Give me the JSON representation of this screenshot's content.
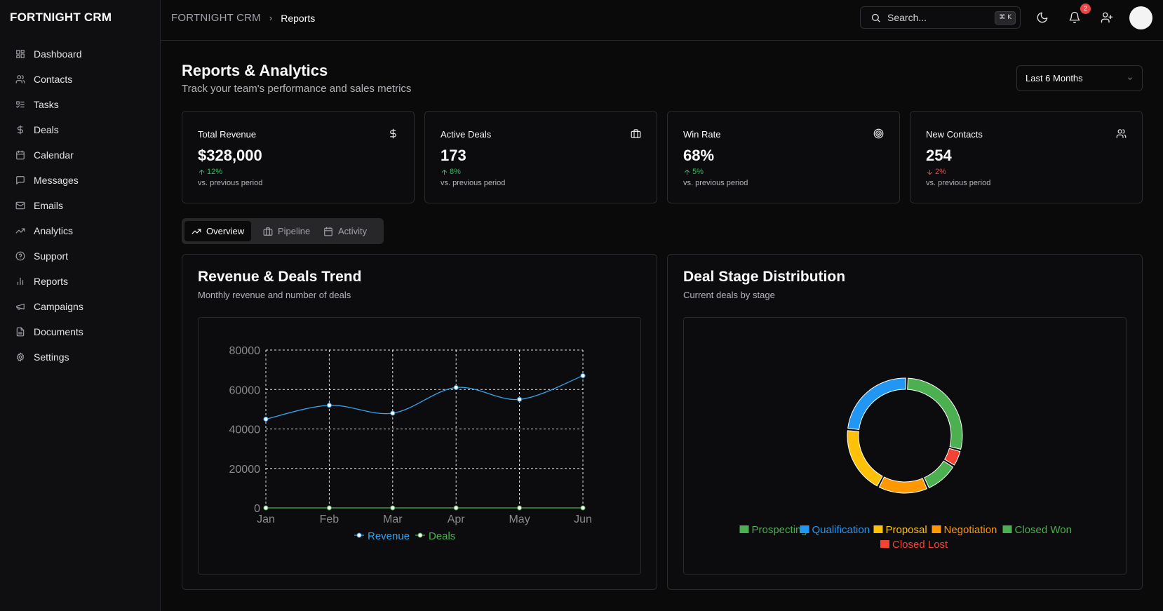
{
  "brand": "FORTNIGHT CRM",
  "sidebar": {
    "items": [
      {
        "label": "Dashboard",
        "icon": "dashboard-icon"
      },
      {
        "label": "Contacts",
        "icon": "users-icon"
      },
      {
        "label": "Tasks",
        "icon": "list-todo-icon"
      },
      {
        "label": "Deals",
        "icon": "dollar-icon"
      },
      {
        "label": "Calendar",
        "icon": "calendar-icon"
      },
      {
        "label": "Messages",
        "icon": "message-icon"
      },
      {
        "label": "Emails",
        "icon": "mail-icon"
      },
      {
        "label": "Analytics",
        "icon": "trending-up-icon"
      },
      {
        "label": "Support",
        "icon": "help-circle-icon"
      },
      {
        "label": "Reports",
        "icon": "bar-chart-icon"
      },
      {
        "label": "Campaigns",
        "icon": "megaphone-icon"
      },
      {
        "label": "Documents",
        "icon": "file-icon"
      },
      {
        "label": "Settings",
        "icon": "gear-icon"
      }
    ]
  },
  "header": {
    "breadcrumb_root": "FORTNIGHT CRM",
    "breadcrumb_current": "Reports",
    "search_placeholder": "Search...",
    "search_shortcut": "⌘ K",
    "notification_count": "2"
  },
  "page": {
    "title": "Reports & Analytics",
    "subtitle": "Track your team's performance and sales metrics",
    "period_select": "Last 6 Months"
  },
  "kpis": [
    {
      "label": "Total Revenue",
      "value": "$328,000",
      "change": "12%",
      "direction": "up",
      "note": "vs. previous period",
      "icon": "dollar-icon"
    },
    {
      "label": "Active Deals",
      "value": "173",
      "change": "8%",
      "direction": "up",
      "note": "vs. previous period",
      "icon": "briefcase-icon"
    },
    {
      "label": "Win Rate",
      "value": "68%",
      "change": "5%",
      "direction": "up",
      "note": "vs. previous period",
      "icon": "target-icon"
    },
    {
      "label": "New Contacts",
      "value": "254",
      "change": "2%",
      "direction": "down",
      "note": "vs. previous period",
      "icon": "users-icon"
    }
  ],
  "tabs": [
    {
      "label": "Overview",
      "icon": "trending-up-icon",
      "active": true
    },
    {
      "label": "Pipeline",
      "icon": "briefcase-icon",
      "active": false
    },
    {
      "label": "Activity",
      "icon": "calendar-icon",
      "active": false
    }
  ],
  "trend_card": {
    "title": "Revenue & Deals Trend",
    "subtitle": "Monthly revenue and number of deals"
  },
  "stage_card": {
    "title": "Deal Stage Distribution",
    "subtitle": "Current deals by stage"
  },
  "colors": {
    "revenue": "#36a2eb",
    "deals": "#4caf50",
    "prospecting": "#4caf50",
    "qualification": "#2196f3",
    "proposal": "#ffc107",
    "negotiation": "#ff9800",
    "closed_won": "#4caf50",
    "closed_lost": "#f44336"
  },
  "chart_data": [
    {
      "type": "line",
      "x": [
        "Jan",
        "Feb",
        "Mar",
        "Apr",
        "May",
        "Jun"
      ],
      "series": [
        {
          "name": "Revenue",
          "values": [
            45000,
            52000,
            48000,
            61000,
            55000,
            67000
          ]
        },
        {
          "name": "Deals",
          "values": [
            0,
            0,
            0,
            0,
            0,
            0
          ]
        }
      ],
      "ylim": [
        0,
        80000
      ],
      "yticks": [
        0,
        20000,
        40000,
        60000,
        80000
      ],
      "grid": true,
      "legend": "bottom"
    },
    {
      "type": "pie",
      "categories": [
        "Prospecting",
        "Qualification",
        "Proposal",
        "Negotiation",
        "Closed Won",
        "Closed Lost"
      ],
      "values": [
        30,
        25,
        20,
        15,
        10,
        5
      ],
      "legend": "bottom"
    }
  ]
}
